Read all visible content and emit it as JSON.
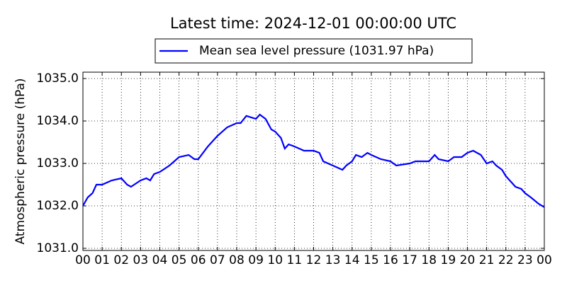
{
  "chart_data": {
    "type": "line",
    "title": "Latest time: 2024-12-01 00:00:00 UTC",
    "y_label": "Atmospheric pressure (hPa)",
    "legend_position": "top",
    "grid": true,
    "series": [
      {
        "name": "Mean sea level pressure (1031.97 hPa)",
        "color": "#0000ff",
        "x": [
          0,
          0.25,
          0.5,
          0.7,
          1,
          1.5,
          2,
          2.3,
          2.5,
          3,
          3.3,
          3.5,
          3.7,
          4,
          4.5,
          5,
          5.5,
          5.8,
          6,
          6.5,
          7,
          7.5,
          8,
          8.2,
          8.5,
          9,
          9.2,
          9.5,
          9.8,
          10,
          10.3,
          10.5,
          10.7,
          11,
          11.5,
          12,
          12.3,
          12.5,
          13,
          13.5,
          13.7,
          14,
          14.2,
          14.5,
          14.8,
          15,
          15.5,
          16,
          16.3,
          17,
          17.3,
          17.7,
          18,
          18.3,
          18.5,
          19,
          19.3,
          19.7,
          20,
          20.3,
          20.7,
          21,
          21.3,
          21.5,
          21.8,
          22,
          22.3,
          22.5,
          22.8,
          23,
          23.3,
          23.7,
          24
        ],
        "values": [
          1032.0,
          1032.2,
          1032.3,
          1032.5,
          1032.5,
          1032.6,
          1032.65,
          1032.5,
          1032.45,
          1032.6,
          1032.65,
          1032.6,
          1032.75,
          1032.8,
          1032.95,
          1033.15,
          1033.2,
          1033.1,
          1033.1,
          1033.4,
          1033.65,
          1033.85,
          1033.95,
          1033.95,
          1034.12,
          1034.05,
          1034.15,
          1034.05,
          1033.8,
          1033.75,
          1033.6,
          1033.35,
          1033.45,
          1033.4,
          1033.3,
          1033.3,
          1033.25,
          1033.05,
          1032.95,
          1032.85,
          1032.95,
          1033.05,
          1033.2,
          1033.15,
          1033.25,
          1033.2,
          1033.1,
          1033.05,
          1032.95,
          1033.0,
          1033.05,
          1033.05,
          1033.05,
          1033.2,
          1033.1,
          1033.05,
          1033.15,
          1033.15,
          1033.25,
          1033.3,
          1033.2,
          1033.0,
          1033.05,
          1032.95,
          1032.85,
          1032.7,
          1032.55,
          1032.45,
          1032.4,
          1032.3,
          1032.2,
          1032.05,
          1031.97
        ]
      }
    ],
    "xlim": [
      0,
      24
    ],
    "xticks": [
      {
        "value": 0,
        "label": "00"
      },
      {
        "value": 1,
        "label": "01"
      },
      {
        "value": 2,
        "label": "02"
      },
      {
        "value": 3,
        "label": "03"
      },
      {
        "value": 4,
        "label": "04"
      },
      {
        "value": 5,
        "label": "05"
      },
      {
        "value": 6,
        "label": "06"
      },
      {
        "value": 7,
        "label": "07"
      },
      {
        "value": 8,
        "label": "08"
      },
      {
        "value": 9,
        "label": "09"
      },
      {
        "value": 10,
        "label": "10"
      },
      {
        "value": 11,
        "label": "11"
      },
      {
        "value": 12,
        "label": "12"
      },
      {
        "value": 13,
        "label": "13"
      },
      {
        "value": 14,
        "label": "14"
      },
      {
        "value": 15,
        "label": "15"
      },
      {
        "value": 16,
        "label": "16"
      },
      {
        "value": 17,
        "label": "17"
      },
      {
        "value": 18,
        "label": "18"
      },
      {
        "value": 19,
        "label": "19"
      },
      {
        "value": 20,
        "label": "20"
      },
      {
        "value": 21,
        "label": "21"
      },
      {
        "value": 22,
        "label": "22"
      },
      {
        "value": 23,
        "label": "23"
      },
      {
        "value": 24,
        "label": "00"
      }
    ],
    "ylim": [
      1030.95,
      1035.15
    ],
    "yticks": [
      {
        "value": 1031,
        "label": "1031.0"
      },
      {
        "value": 1032,
        "label": "1032.0"
      },
      {
        "value": 1033,
        "label": "1033.0"
      },
      {
        "value": 1034,
        "label": "1034.0"
      },
      {
        "value": 1035,
        "label": "1035.0"
      }
    ]
  }
}
